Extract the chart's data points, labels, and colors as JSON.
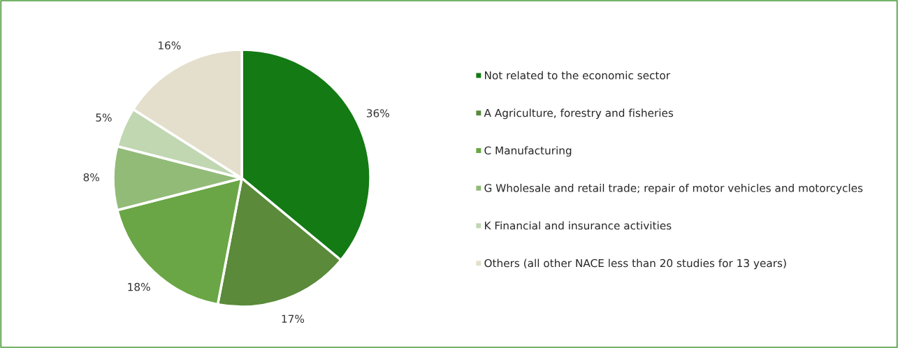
{
  "chart_data": {
    "type": "pie",
    "categories": [
      "Not related to the economic sector",
      "A Agriculture, forestry and fisheries",
      "C Manufacturing",
      "G Wholesale and retail trade; repair of motor vehicles and motorcycles",
      "K Financial and insurance activities",
      "Others (all other NACE less than 20 studies for 13 years)"
    ],
    "values": [
      36,
      17,
      18,
      8,
      5,
      16
    ],
    "colors": [
      "#137a14",
      "#5a8a3a",
      "#6aa645",
      "#92bb78",
      "#c0d7b2",
      "#e3dfcc"
    ],
    "value_labels": [
      "36%",
      "17%",
      "18%",
      "8%",
      "5%",
      "16%"
    ],
    "legend": "right"
  }
}
